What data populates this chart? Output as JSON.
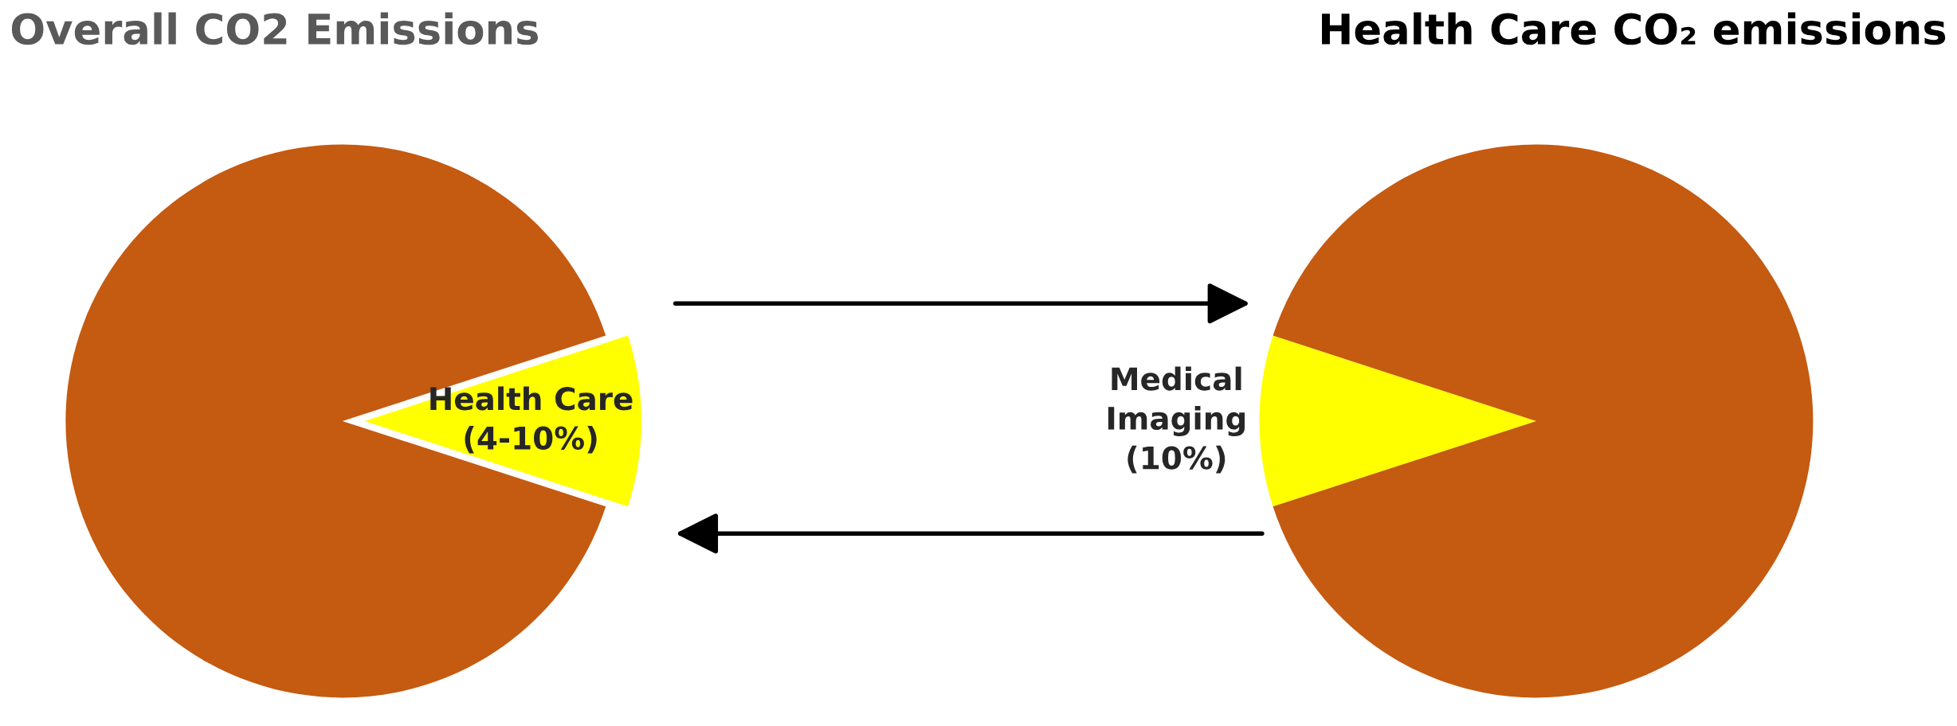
{
  "chart_data": [
    {
      "type": "pie",
      "title": "Overall CO2 Emissions",
      "categories": [
        "Health Care (4-10%)",
        null
      ],
      "values": [
        10,
        90
      ],
      "colors": [
        "#ffff00",
        "#c55a11"
      ]
    },
    {
      "type": "pie",
      "title": "Health Care CO₂ emissions",
      "categories": [
        "Medical Imaging",
        null
      ],
      "values": [
        10,
        90
      ],
      "colors": [
        "#ffff00",
        "#c55a11"
      ],
      "value_labels": [
        "(10%)",
        null
      ]
    }
  ]
}
